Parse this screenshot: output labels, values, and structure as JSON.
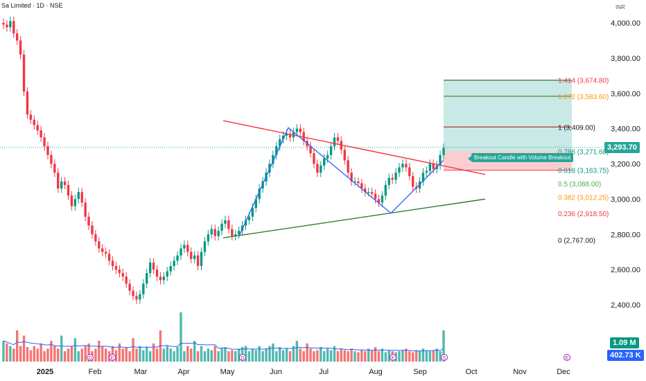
{
  "header": {
    "title": "S̶a̶i̶l̶... Limited · 1D · NSE",
    "title_text": "Sa   Limited · 1D · NSE",
    "currency": "INR"
  },
  "chart_data": {
    "type": "candlestick",
    "ylim": [
      2300,
      4080
    ],
    "y_ticks": [
      "4,000.00",
      "3,800.00",
      "3,600.00",
      "3,400.00",
      "3,200.00",
      "3,000.00",
      "2,800.00",
      "2,600.00",
      "2,400.00"
    ],
    "y_tick_values": [
      4000,
      3800,
      3600,
      3400,
      3200,
      3000,
      2800,
      2600,
      2400
    ],
    "x_ticks": [
      "2025",
      "Feb",
      "Mar",
      "Apr",
      "May",
      "Jun",
      "Jul",
      "Aug",
      "Sep",
      "Oct",
      "Nov",
      "Dec"
    ],
    "last_price": "3,293.70",
    "volume_label": "1.09 M",
    "avg_volume_label": "402.73 K",
    "fib_levels": [
      {
        "label": "1.414 (3,674.80)",
        "value": 3674.8,
        "color": "#f23645"
      },
      {
        "label": "1.272 (3,583.60)",
        "value": 3583.6,
        "color": "#ff9800"
      },
      {
        "label": "1 (3,409.00)",
        "value": 3409.0,
        "color": "#131722"
      },
      {
        "label": "0.786 (3,271.60)",
        "value": 3271.6,
        "color": "#089981"
      },
      {
        "label": "0.618 (3,163.75)",
        "value": 3163.75,
        "color": "#089981"
      },
      {
        "label": "0.5 (3,088.00)",
        "value": 3088.0,
        "color": "#4caf50"
      },
      {
        "label": "0.382 (3,012.25)",
        "value": 3012.25,
        "color": "#ff9800"
      },
      {
        "label": "0.236 (2,918.50)",
        "value": 2918.5,
        "color": "#f23645"
      },
      {
        "label": "0 (2,767.00)",
        "value": 2767.0,
        "color": "#131722"
      }
    ],
    "annotation": "Breakout Candle with Volume Breakout",
    "trendlines": {
      "resistance": [
        {
          "date": "May-01",
          "price": 3445
        },
        {
          "date": "Oct-01",
          "price": 3140
        }
      ],
      "support": [
        {
          "date": "May-01",
          "price": 2780
        },
        {
          "date": "Oct-01",
          "price": 3000
        }
      ],
      "pattern": [
        {
          "date": "May-10",
          "price": 2790
        },
        {
          "date": "Jun-09",
          "price": 3405
        },
        {
          "date": "Aug-12",
          "price": 2920
        },
        {
          "date": "Sep-17",
          "price": 3220
        }
      ]
    },
    "targets": {
      "stop": 3163.75,
      "entry": 3271.6,
      "t1": 3409.0,
      "t2": 3583.6,
      "t3": 3674.8
    },
    "ohlc_approx": [
      3990,
      3975,
      4010,
      3940,
      3900,
      3820,
      3610,
      3480,
      3450,
      3420,
      3390,
      3350,
      3300,
      3250,
      3200,
      3150,
      3060,
      3100,
      3080,
      3020,
      2960,
      3000,
      3040,
      2980,
      2900,
      2850,
      2800,
      2760,
      2720,
      2700,
      2690,
      2650,
      2620,
      2600,
      2580,
      2560,
      2520,
      2480,
      2450,
      2430,
      2460,
      2520,
      2580,
      2640,
      2600,
      2560,
      2540,
      2560,
      2590,
      2620,
      2650,
      2680,
      2720,
      2740,
      2700,
      2660,
      2680,
      2620,
      2700,
      2760,
      2800,
      2830,
      2790,
      2820,
      2860,
      2880,
      2830,
      2790,
      2800,
      2820,
      2850,
      2880,
      2900,
      2950,
      3000,
      3060,
      3100,
      3150,
      3200,
      3250,
      3300,
      3340,
      3360,
      3370,
      3350,
      3380,
      3400,
      3380,
      3330,
      3300,
      3260,
      3200,
      3150,
      3190,
      3230,
      3250,
      3300,
      3350,
      3330,
      3280,
      3220,
      3150,
      3100,
      3100,
      3090,
      3060,
      3040,
      3040,
      3030,
      3000,
      2980,
      3020,
      3080,
      3120,
      3110,
      3150,
      3180,
      3200,
      3180,
      3130,
      3070,
      3060,
      3100,
      3150,
      3160,
      3200,
      3170,
      3190,
      3250,
      3290
    ],
    "volume_approx": [
      40,
      35,
      30,
      25,
      60,
      30,
      50,
      28,
      22,
      30,
      25,
      35,
      20,
      25,
      40,
      30,
      25,
      50,
      20,
      25,
      30,
      45,
      20,
      25,
      30,
      35,
      20,
      25,
      40,
      30,
      25,
      20,
      30,
      22,
      35,
      25,
      28,
      20,
      45,
      25,
      30,
      22,
      28,
      20,
      35,
      25,
      60,
      25,
      30,
      25,
      20,
      28,
      95,
      20,
      30,
      25,
      40,
      20,
      30,
      20,
      25,
      22,
      30,
      20,
      25,
      28,
      20,
      22,
      20,
      25,
      28,
      30,
      20,
      25,
      22,
      30,
      20,
      25,
      30,
      35,
      20,
      28,
      22,
      25,
      20,
      30,
      40,
      25,
      20,
      35,
      25,
      20,
      22,
      28,
      20,
      25,
      22,
      30,
      20,
      25,
      22,
      20,
      25,
      20,
      18,
      22,
      20,
      25,
      22,
      28,
      20,
      25,
      18,
      22,
      20,
      18,
      20,
      22,
      25,
      20,
      18,
      22,
      20,
      25,
      22,
      20,
      22,
      25,
      20,
      60
    ]
  }
}
